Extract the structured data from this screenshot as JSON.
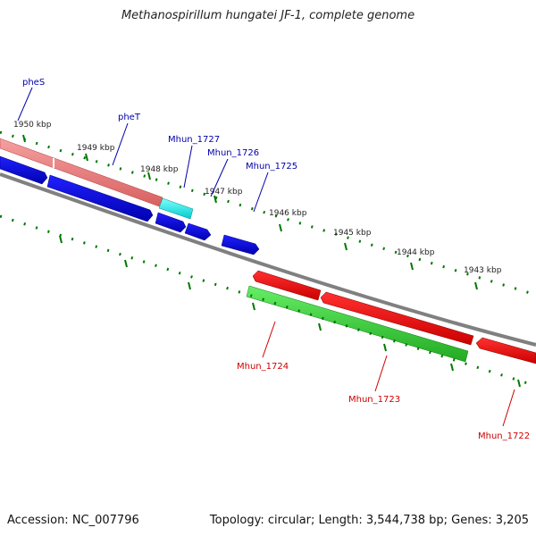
{
  "title": "Methanospirillum hungatei JF-1, complete genome",
  "footer": {
    "accession": "Accession: NC_007796",
    "summary": "Topology: circular; Length: 3,544,738 bp; Genes: 3,205"
  },
  "kbp_labels": [
    "1950 kbp",
    "1949 kbp",
    "1948 kbp",
    "1947 kbp",
    "1946 kbp",
    "1945 kbp",
    "1944 kbp",
    "1943 kbp"
  ],
  "forward_labels": [
    "pheS",
    "pheT",
    "Mhun_1727",
    "Mhun_1726",
    "Mhun_1725"
  ],
  "reverse_labels": [
    "Mhun_1724",
    "Mhun_1723",
    "Mhun_1722"
  ],
  "colors": {
    "backbone": "#808080",
    "forward_cds": "#0000ee",
    "reverse_cds": "#ee0000",
    "trna_like": "#00eeee",
    "gene_forward_bar": "#ee7070",
    "gene_reverse_bar": "#33cc33",
    "tick": "#007700",
    "forward_label": "#0000aa",
    "reverse_label": "#cc0000"
  }
}
